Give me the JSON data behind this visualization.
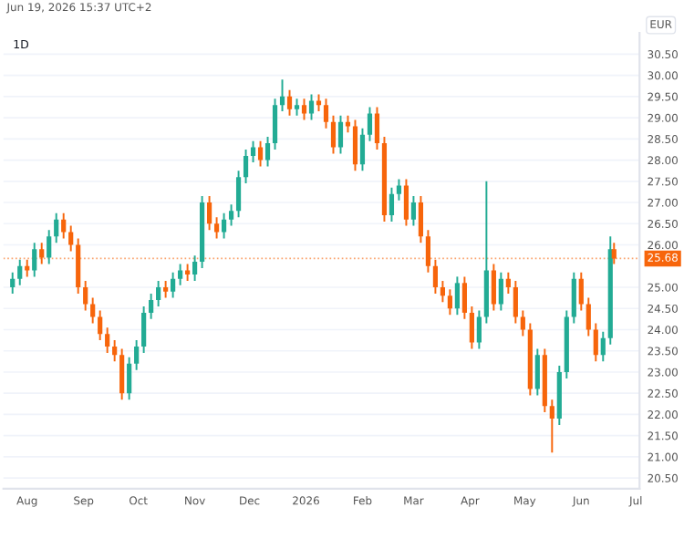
{
  "chart_data": {
    "type": "candlestick",
    "title": "1D",
    "ylabel": "EUR",
    "annotations": [
      "Jun 19, 2026 15:37 UTC+2"
    ],
    "x": [
      "2025-07-24",
      "2025-07-28",
      "2025-08-01",
      "2025-08-05",
      "2025-08-09",
      "2025-08-13",
      "2025-08-17",
      "2025-08-21",
      "2025-08-25",
      "2025-08-29",
      "2025-09-02",
      "2025-09-06",
      "2025-09-10",
      "2025-09-14",
      "2025-09-18",
      "2025-09-22",
      "2025-09-26",
      "2025-09-30",
      "2025-10-04",
      "2025-10-08",
      "2025-10-12",
      "2025-10-16",
      "2025-10-20",
      "2025-10-24",
      "2025-10-28",
      "2025-11-01",
      "2025-11-05",
      "2025-11-09",
      "2025-11-13",
      "2025-11-17",
      "2025-11-21",
      "2025-11-25",
      "2025-11-29",
      "2025-12-03",
      "2025-12-07",
      "2025-12-11",
      "2025-12-15",
      "2025-12-19",
      "2025-12-23",
      "2025-12-27",
      "2025-12-31",
      "2026-01-04",
      "2026-01-08",
      "2026-01-12",
      "2026-01-16",
      "2026-01-20",
      "2026-01-24",
      "2026-01-28",
      "2026-02-01",
      "2026-02-05",
      "2026-02-09",
      "2026-02-13",
      "2026-02-17",
      "2026-02-21",
      "2026-02-25",
      "2026-03-01",
      "2026-03-05",
      "2026-03-09",
      "2026-03-13",
      "2026-03-17",
      "2026-03-21",
      "2026-03-25",
      "2026-03-29",
      "2026-04-02",
      "2026-04-06",
      "2026-04-10",
      "2026-04-14",
      "2026-04-18",
      "2026-04-22",
      "2026-04-26",
      "2026-04-30",
      "2026-05-04",
      "2026-05-08",
      "2026-05-12",
      "2026-05-16",
      "2026-05-20",
      "2026-05-24",
      "2026-05-28",
      "2026-06-01",
      "2026-06-05",
      "2026-06-09",
      "2026-06-13",
      "2026-06-17",
      "2026-06-19"
    ],
    "ohlc": [
      [
        25.0,
        25.35,
        24.85,
        25.2
      ],
      [
        25.2,
        25.65,
        25.05,
        25.5
      ],
      [
        25.5,
        25.65,
        25.25,
        25.4
      ],
      [
        25.4,
        26.05,
        25.25,
        25.9
      ],
      [
        25.9,
        26.05,
        25.55,
        25.7
      ],
      [
        25.7,
        26.35,
        25.55,
        26.2
      ],
      [
        26.2,
        26.75,
        26.05,
        26.6
      ],
      [
        26.6,
        26.75,
        26.15,
        26.3
      ],
      [
        26.3,
        26.45,
        25.85,
        26.0
      ],
      [
        26.0,
        26.15,
        24.85,
        25.0
      ],
      [
        25.0,
        25.15,
        24.45,
        24.6
      ],
      [
        24.6,
        24.75,
        24.15,
        24.3
      ],
      [
        24.3,
        24.45,
        23.75,
        23.9
      ],
      [
        23.9,
        24.05,
        23.45,
        23.6
      ],
      [
        23.6,
        23.75,
        23.25,
        23.4
      ],
      [
        23.4,
        23.55,
        22.35,
        22.5
      ],
      [
        22.5,
        23.35,
        22.35,
        23.2
      ],
      [
        23.2,
        23.75,
        23.05,
        23.6
      ],
      [
        23.6,
        24.55,
        23.45,
        24.4
      ],
      [
        24.4,
        24.85,
        24.25,
        24.7
      ],
      [
        24.7,
        25.15,
        24.55,
        25.0
      ],
      [
        25.0,
        25.15,
        24.75,
        24.9
      ],
      [
        24.9,
        25.35,
        24.75,
        25.2
      ],
      [
        25.2,
        25.55,
        25.05,
        25.4
      ],
      [
        25.4,
        25.55,
        25.15,
        25.3
      ],
      [
        25.3,
        25.75,
        25.15,
        25.6
      ],
      [
        25.6,
        27.15,
        25.45,
        27.0
      ],
      [
        27.0,
        27.15,
        26.35,
        26.5
      ],
      [
        26.5,
        26.65,
        26.15,
        26.3
      ],
      [
        26.3,
        26.75,
        26.15,
        26.6
      ],
      [
        26.6,
        26.95,
        26.45,
        26.8
      ],
      [
        26.8,
        27.75,
        26.65,
        27.6
      ],
      [
        27.6,
        28.25,
        27.45,
        28.1
      ],
      [
        28.1,
        28.45,
        27.95,
        28.3
      ],
      [
        28.3,
        28.45,
        27.85,
        28.0
      ],
      [
        28.0,
        28.55,
        27.85,
        28.4
      ],
      [
        28.4,
        29.45,
        28.25,
        29.3
      ],
      [
        29.3,
        29.9,
        29.15,
        29.5
      ],
      [
        29.5,
        29.65,
        29.05,
        29.2
      ],
      [
        29.2,
        29.45,
        29.05,
        29.3
      ],
      [
        29.3,
        29.45,
        28.95,
        29.1
      ],
      [
        29.1,
        29.55,
        28.95,
        29.4
      ],
      [
        29.4,
        29.55,
        29.15,
        29.3
      ],
      [
        29.3,
        29.45,
        28.75,
        28.9
      ],
      [
        28.9,
        29.05,
        28.15,
        28.3
      ],
      [
        28.3,
        29.05,
        28.15,
        28.9
      ],
      [
        28.9,
        29.05,
        28.65,
        28.8
      ],
      [
        28.8,
        28.95,
        27.75,
        27.9
      ],
      [
        27.9,
        28.75,
        27.75,
        28.6
      ],
      [
        28.6,
        29.25,
        28.45,
        29.1
      ],
      [
        29.1,
        29.25,
        28.25,
        28.4
      ],
      [
        28.4,
        28.55,
        26.55,
        26.7
      ],
      [
        26.7,
        27.35,
        26.55,
        27.2
      ],
      [
        27.2,
        27.55,
        27.05,
        27.4
      ],
      [
        27.4,
        27.55,
        26.45,
        26.6
      ],
      [
        26.6,
        27.15,
        26.45,
        27.0
      ],
      [
        27.0,
        27.15,
        26.05,
        26.2
      ],
      [
        26.2,
        26.35,
        25.35,
        25.5
      ],
      [
        25.5,
        25.65,
        24.85,
        25.0
      ],
      [
        25.0,
        25.15,
        24.65,
        24.8
      ],
      [
        24.8,
        24.95,
        24.35,
        24.5
      ],
      [
        24.5,
        25.25,
        24.35,
        25.1
      ],
      [
        25.1,
        25.25,
        24.25,
        24.4
      ],
      [
        24.4,
        24.55,
        23.55,
        23.7
      ],
      [
        23.7,
        24.45,
        23.55,
        24.3
      ],
      [
        24.3,
        27.5,
        24.15,
        25.4
      ],
      [
        25.4,
        25.55,
        24.45,
        24.6
      ],
      [
        24.6,
        25.35,
        24.45,
        25.2
      ],
      [
        25.2,
        25.35,
        24.85,
        25.0
      ],
      [
        25.0,
        25.15,
        24.15,
        24.3
      ],
      [
        24.3,
        24.45,
        23.85,
        24.0
      ],
      [
        24.0,
        24.15,
        22.45,
        22.6
      ],
      [
        22.6,
        23.55,
        22.45,
        23.4
      ],
      [
        23.4,
        23.55,
        22.05,
        22.2
      ],
      [
        22.2,
        22.35,
        21.1,
        21.9
      ],
      [
        21.9,
        23.15,
        21.75,
        23.0
      ],
      [
        23.0,
        24.45,
        22.85,
        24.3
      ],
      [
        24.3,
        25.35,
        24.15,
        25.2
      ],
      [
        25.2,
        25.35,
        24.45,
        24.6
      ],
      [
        24.6,
        24.75,
        23.85,
        24.0
      ],
      [
        24.0,
        24.15,
        23.25,
        23.4
      ],
      [
        23.4,
        23.95,
        23.25,
        23.8
      ],
      [
        23.8,
        26.2,
        23.65,
        25.9
      ],
      [
        25.9,
        26.05,
        25.55,
        25.68
      ]
    ],
    "xlim": [
      "2025-07-19",
      "2026-07-03"
    ],
    "xticks": [
      {
        "value": "2025-08-01",
        "label": "Aug"
      },
      {
        "value": "2025-09-01",
        "label": "Sep"
      },
      {
        "value": "2025-10-01",
        "label": "Oct"
      },
      {
        "value": "2025-11-01",
        "label": "Nov"
      },
      {
        "value": "2025-12-01",
        "label": "Dec"
      },
      {
        "value": "2026-01-01",
        "label": "2026"
      },
      {
        "value": "2026-02-01",
        "label": "Feb"
      },
      {
        "value": "2026-03-01",
        "label": "Mar"
      },
      {
        "value": "2026-04-01",
        "label": "Apr"
      },
      {
        "value": "2026-05-01",
        "label": "May"
      },
      {
        "value": "2026-06-01",
        "label": "Jun"
      },
      {
        "value": "2026-07-01",
        "label": "Jul"
      }
    ],
    "ylim": [
      20.25,
      31.0
    ],
    "yticks": [
      {
        "value": 20.5,
        "label": "20.50"
      },
      {
        "value": 21.0,
        "label": "21.00"
      },
      {
        "value": 21.5,
        "label": "21.50"
      },
      {
        "value": 22.0,
        "label": "22.00"
      },
      {
        "value": 22.5,
        "label": "22.50"
      },
      {
        "value": 23.0,
        "label": "23.00"
      },
      {
        "value": 23.5,
        "label": "23.50"
      },
      {
        "value": 24.0,
        "label": "24.00"
      },
      {
        "value": 24.5,
        "label": "24.50"
      },
      {
        "value": 25.0,
        "label": "25.00"
      },
      {
        "value": 26.0,
        "label": "26.00"
      },
      {
        "value": 26.5,
        "label": "26.50"
      },
      {
        "value": 27.0,
        "label": "27.00"
      },
      {
        "value": 27.5,
        "label": "27.50"
      },
      {
        "value": 28.0,
        "label": "28.00"
      },
      {
        "value": 28.5,
        "label": "28.50"
      },
      {
        "value": 29.0,
        "label": "29.00"
      },
      {
        "value": 29.5,
        "label": "29.50"
      },
      {
        "value": 30.0,
        "label": "30.00"
      },
      {
        "value": 30.5,
        "label": "30.50"
      }
    ],
    "ref_lines": [
      {
        "axis": "y",
        "value": 25.68,
        "label": "25.68",
        "color": "#f7650b",
        "line_style": "dotted"
      }
    ],
    "grid": "y",
    "legend": false
  }
}
